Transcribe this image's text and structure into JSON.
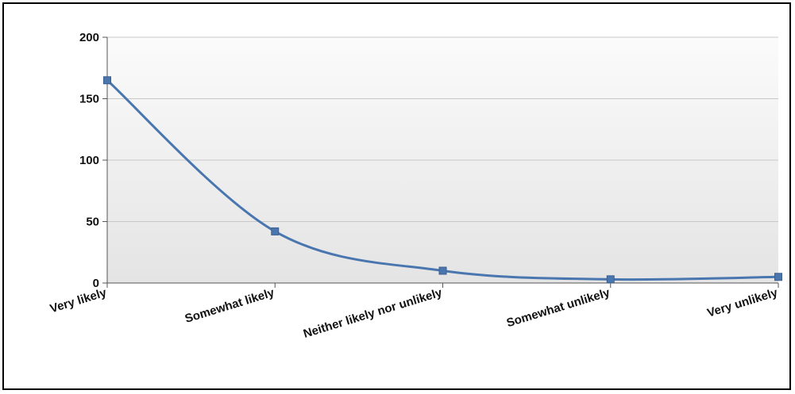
{
  "chart_data": {
    "type": "line",
    "title": "",
    "xlabel": "",
    "ylabel": "",
    "categories": [
      "Very likely",
      "Somewhat likely",
      "Neither likely nor unlikely",
      "Somewhat unlikely",
      "Very unlikely"
    ],
    "series": [
      {
        "values": [
          165,
          42,
          10,
          3,
          5
        ],
        "color": "#4a76b0"
      }
    ],
    "ylim": [
      0,
      200
    ],
    "yticks": [
      "0",
      "50",
      "100",
      "150",
      "200"
    ],
    "grid": true,
    "legend": "none",
    "smooth": true
  }
}
